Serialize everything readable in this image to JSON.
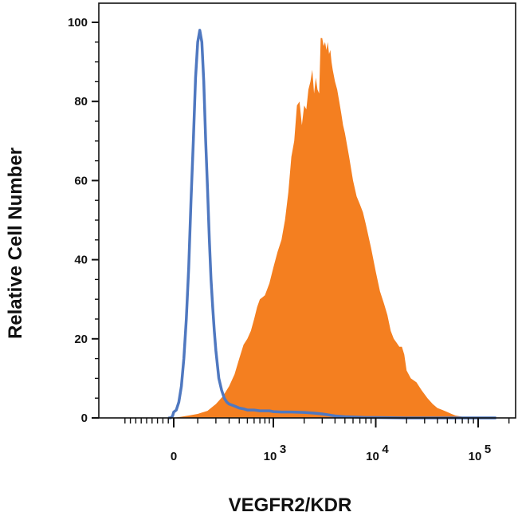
{
  "chart_data": {
    "type": "area",
    "xlabel": "VEGFR2/KDR",
    "ylabel": "Relative Cell Number",
    "x_scale": "biexponential",
    "ylim": [
      0,
      100
    ],
    "x_ticks": [
      {
        "label": "0",
        "exp": ""
      },
      {
        "label": "10",
        "exp": "3"
      },
      {
        "label": "10",
        "exp": "4"
      },
      {
        "label": "10",
        "exp": "5"
      }
    ],
    "y_ticks": [
      "0",
      "20",
      "40",
      "60",
      "80",
      "100"
    ],
    "series": [
      {
        "style": "filled",
        "color": "#f47f20",
        "x": [
          -20,
          30,
          60,
          100,
          150,
          200,
          250,
          300,
          350,
          400,
          450,
          500,
          550,
          600,
          650,
          700,
          750,
          800,
          900,
          1000,
          1100,
          1200,
          1300,
          1400,
          1500,
          1600,
          1700,
          1800,
          1900,
          2000,
          2100,
          2200,
          2300,
          2400,
          2500,
          2600,
          2700,
          2800,
          2900,
          3000,
          3100,
          3200,
          3300,
          3400,
          3500,
          3600,
          3700,
          3800,
          4000,
          4200,
          4400,
          4600,
          4800,
          5000,
          5500,
          6000,
          6500,
          7000,
          7500,
          8000,
          9000,
          10000,
          11000,
          12000,
          13000,
          14000,
          15000,
          16000,
          17000,
          18000,
          19000,
          20000,
          22000,
          25000,
          28000,
          32000,
          36000,
          40000,
          45000,
          50000,
          55000,
          60000,
          70000,
          80000,
          100000,
          150000
        ],
        "y": [
          0,
          0.3,
          0.6,
          1,
          1.8,
          3.5,
          5.5,
          8,
          11,
          15,
          18.5,
          20,
          22,
          25,
          28,
          30,
          30.5,
          31,
          34,
          38,
          42,
          45,
          50,
          57,
          66,
          70,
          79,
          80,
          74,
          79,
          78,
          83,
          85,
          88,
          82,
          86,
          83,
          82,
          96,
          96,
          94,
          95,
          93,
          95,
          92,
          93,
          90,
          88,
          85,
          83,
          80,
          77,
          74,
          72,
          66,
          60,
          56,
          54,
          52,
          49,
          43,
          37,
          32,
          29,
          26,
          22,
          20,
          19,
          18,
          18,
          16,
          12,
          10,
          9,
          7,
          5,
          3.5,
          2.5,
          2,
          1.5,
          1,
          0.6,
          0.3,
          0.1,
          0,
          0
        ]
      },
      {
        "style": "outline",
        "color": "#4f78c0",
        "x": [
          -100,
          -60,
          -40,
          -20,
          -10,
          0,
          10,
          20,
          30,
          40,
          50,
          60,
          70,
          80,
          90,
          100,
          110,
          120,
          130,
          140,
          150,
          160,
          170,
          180,
          190,
          200,
          220,
          240,
          260,
          280,
          300,
          350,
          400,
          450,
          500,
          600,
          700,
          800,
          900,
          1000,
          1200,
          1500,
          2000,
          2500,
          3000,
          4000,
          5000,
          8000,
          10000,
          20000,
          50000,
          100000,
          150000
        ],
        "y": [
          0,
          0,
          0.2,
          0.5,
          1,
          1.5,
          2,
          4,
          8,
          15,
          25,
          38,
          55,
          70,
          86,
          95,
          98,
          95,
          85,
          70,
          58,
          45,
          35,
          28,
          22,
          17,
          10,
          7,
          5,
          4,
          3.5,
          3,
          2.5,
          2.3,
          2,
          2,
          1.8,
          1.8,
          1.8,
          1.6,
          1.5,
          1.5,
          1.4,
          1.2,
          1,
          0.5,
          0.3,
          0.1,
          0.1,
          0,
          0,
          0,
          0
        ]
      }
    ]
  }
}
